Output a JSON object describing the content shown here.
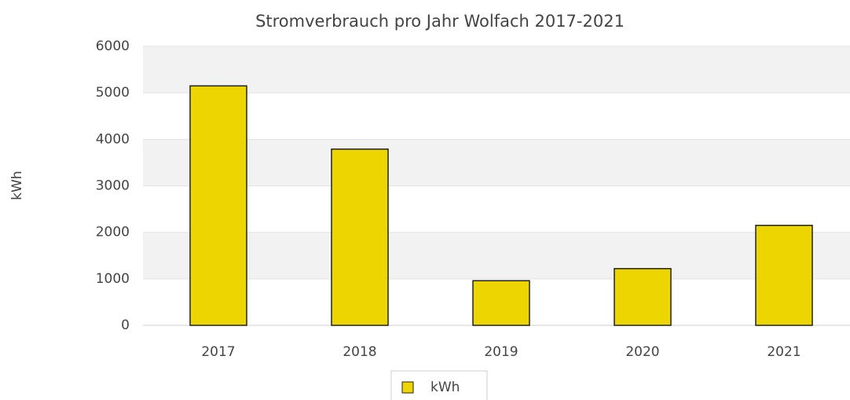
{
  "chart_data": {
    "type": "bar",
    "title": "Stromverbrauch pro Jahr Wolfach 2017-2021",
    "y_label": "kWh",
    "categories": [
      "2017",
      "2018",
      "2019",
      "2020",
      "2021"
    ],
    "series": [
      {
        "name": "kWh",
        "color": "#ecd500",
        "values": [
          5150,
          3790,
          960,
          1220,
          2150
        ]
      }
    ],
    "ylim": [
      0,
      6000
    ],
    "yticks": [
      0,
      1000,
      2000,
      3000,
      4000,
      5000,
      6000
    ],
    "grid": true,
    "legend": "bottom"
  }
}
